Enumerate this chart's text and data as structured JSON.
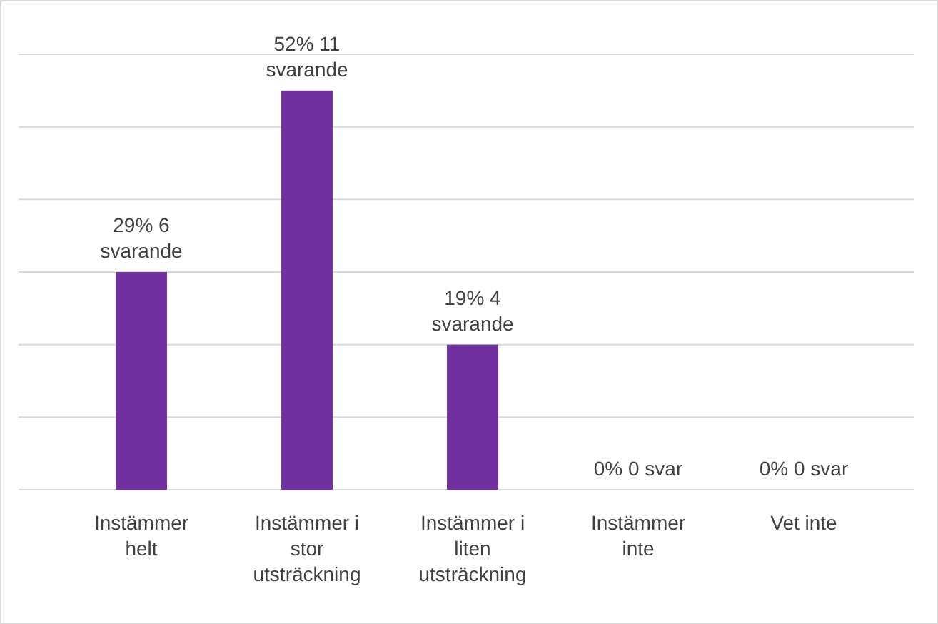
{
  "chart_data": {
    "type": "bar",
    "categories": [
      "Instämmer helt",
      "Instämmer i stor utsträckning",
      "Instämmer i liten utsträckning",
      "Instämmer inte",
      "Vet inte"
    ],
    "values": [
      6,
      11,
      4,
      0,
      0
    ],
    "value_labels": [
      "29% 6 svarande",
      "52% 11 svarande",
      "19% 4 svarande",
      "0% 0 svar",
      "0% 0 svar"
    ],
    "color": "#7030a0",
    "ylim": [
      0,
      12
    ],
    "yticks": [
      {
        "value": 0,
        "label": null
      },
      {
        "value": 2,
        "label": null
      },
      {
        "value": 4,
        "label": null
      },
      {
        "value": 6,
        "label": null
      },
      {
        "value": 8,
        "label": null
      },
      {
        "value": 10,
        "label": null
      },
      {
        "value": 12,
        "label": null
      }
    ],
    "tick_labels": "x",
    "grid": "y"
  }
}
